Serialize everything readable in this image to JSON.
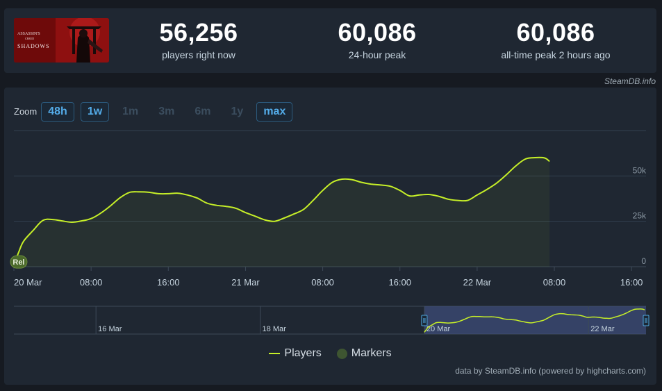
{
  "game": {
    "logo_line1": "ASSASSIN'S",
    "logo_line2": "CREED",
    "logo_line3": "SHADOWS"
  },
  "stats": [
    {
      "value": "56,256",
      "label": "players right now"
    },
    {
      "value": "60,086",
      "label": "24-hour peak"
    },
    {
      "value": "60,086",
      "label": "all-time peak 2 hours ago"
    }
  ],
  "credit_top": "SteamDB.info",
  "zoom": {
    "label": "Zoom",
    "buttons": [
      {
        "label": "48h",
        "active": true
      },
      {
        "label": "1w",
        "active": true
      },
      {
        "label": "1m",
        "active": false
      },
      {
        "label": "3m",
        "active": false
      },
      {
        "label": "6m",
        "active": false
      },
      {
        "label": "1y",
        "active": false
      },
      {
        "label": "max",
        "active": true
      }
    ]
  },
  "legend": {
    "players": "Players",
    "markers": "Markers"
  },
  "credit_bottom": "data by SteamDB.info (powered by highcharts.com)",
  "chart_data": {
    "type": "area",
    "series": [
      {
        "name": "Players",
        "color": "#c6ef28",
        "x_hours": [
          0,
          0.5,
          1,
          2,
          3,
          4,
          5,
          6,
          7,
          8,
          9,
          10,
          11,
          12,
          13,
          14,
          15,
          16,
          17,
          18,
          19,
          20,
          21,
          22,
          23,
          24,
          25,
          26,
          27,
          28,
          29,
          30,
          31,
          32,
          33,
          34,
          35,
          36,
          37,
          38,
          39,
          40,
          41,
          42,
          43,
          44,
          45,
          46,
          47,
          48,
          49,
          50,
          51,
          52,
          53,
          54,
          55,
          55.5
        ],
        "values": [
          1000,
          8000,
          14000,
          20000,
          25500,
          26000,
          25200,
          24500,
          25200,
          26500,
          29500,
          33500,
          38000,
          41000,
          41200,
          41000,
          40200,
          40200,
          40500,
          39500,
          37800,
          35000,
          33800,
          33200,
          32200,
          29800,
          27800,
          25800,
          25000,
          26800,
          29000,
          31500,
          36500,
          42000,
          46500,
          48200,
          48000,
          46500,
          45500,
          45000,
          44300,
          42000,
          39000,
          39500,
          39800,
          38800,
          37200,
          36500,
          36500,
          39500,
          42500,
          46000,
          50500,
          55500,
          59300,
          60086,
          59900,
          58000
        ],
        "point_label": "Rel"
      }
    ],
    "x_ticks": [
      "20 Mar",
      "08:00",
      "16:00",
      "21 Mar",
      "08:00",
      "16:00",
      "22 Mar",
      "08:00",
      "16:00"
    ],
    "x_tick_hours": [
      0,
      8,
      16,
      24,
      32,
      40,
      48,
      56,
      64
    ],
    "y_ticks": [
      "0",
      "25k",
      "50k"
    ],
    "y_tick_values": [
      0,
      25000,
      50000
    ],
    "ylim": [
      0,
      75000
    ],
    "grid": true,
    "legend_position": "bottom-center",
    "navigator": {
      "labels": [
        "16 Mar",
        "18 Mar",
        "20 Mar",
        "22 Mar"
      ],
      "label_days": [
        1,
        3,
        5,
        7
      ],
      "range_days": [
        0,
        7.7
      ],
      "selected_days": [
        5,
        7.7
      ]
    }
  }
}
